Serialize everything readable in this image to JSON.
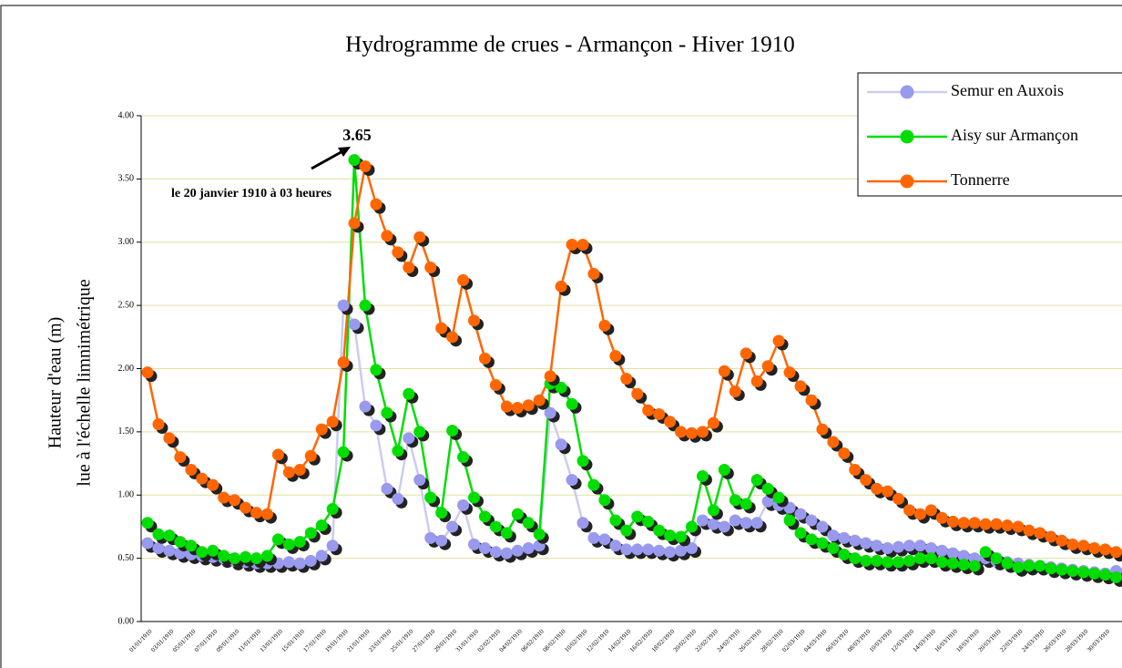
{
  "chart_data": {
    "type": "line",
    "title": "Hydrogramme de crues - Armançon - Hiver 1910",
    "y_label": [
      "Hauteur d'eau (m)",
      "lue à l'échelle limnimétrique"
    ],
    "annotations": [
      "3.65",
      "le 20 janvier 1910 à 03 heures"
    ],
    "categories": [
      "01/01/1910",
      null,
      "03/01/1910",
      null,
      "05/01/1910",
      null,
      "07/01/1910",
      null,
      "09/01/1910",
      null,
      "11/01/1910",
      null,
      "13/01/1910",
      null,
      "15/01/1910",
      null,
      "17/01/1910",
      null,
      "19/01/1910",
      null,
      "21/01/1910",
      null,
      "23/01/1910",
      null,
      "25/01/1910",
      null,
      "27/01/1910",
      null,
      "29/01/1910",
      null,
      "31/01/1910",
      null,
      "02/02/1910",
      null,
      "04/02/1910",
      null,
      "06/02/1910",
      null,
      "08/02/1910",
      null,
      "10/02/1910",
      null,
      "12/02/1910",
      null,
      "14/02/1910",
      null,
      "16/02/1910",
      null,
      "18/02/1910",
      null,
      "20/02/1910",
      null,
      "22/02/1910",
      null,
      "24/02/1910",
      null,
      "26/02/1910",
      null,
      "28/02/1910",
      null,
      "02/03/1910",
      null,
      "04/03/1910",
      null,
      "06/03/1910",
      null,
      "08/03/1910",
      null,
      "10/03/1910",
      null,
      "12/03/1910",
      null,
      "14/03/1910",
      null,
      "16/03/1910",
      null,
      "18/03/1910",
      null,
      "20/03/1910",
      null,
      "22/03/1910",
      null,
      "24/03/1910",
      null,
      "26/03/1910",
      null,
      "28/03/1910",
      null,
      "30/03/1910",
      null
    ],
    "series": [
      {
        "name": "Semur en Auxois",
        "color": "#9999ee",
        "line_color": "#ccccf0",
        "values": [
          0.62,
          0.58,
          0.56,
          0.54,
          0.53,
          0.52,
          0.51,
          0.5,
          0.48,
          0.47,
          0.46,
          0.46,
          0.46,
          0.47,
          0.46,
          0.48,
          0.52,
          0.6,
          2.5,
          2.35,
          1.7,
          1.55,
          1.05,
          0.97,
          1.45,
          1.12,
          0.66,
          0.64,
          0.75,
          0.92,
          0.61,
          0.58,
          0.55,
          0.54,
          0.56,
          0.58,
          0.6,
          1.65,
          1.4,
          1.12,
          0.78,
          0.66,
          0.65,
          0.6,
          0.57,
          0.57,
          0.57,
          0.56,
          0.55,
          0.56,
          0.58,
          0.8,
          0.77,
          0.75,
          0.8,
          0.78,
          0.78,
          0.95,
          0.92,
          0.9,
          0.85,
          0.8,
          0.75,
          0.68,
          0.66,
          0.64,
          0.62,
          0.6,
          0.58,
          0.59,
          0.6,
          0.6,
          0.58,
          0.56,
          0.54,
          0.52,
          0.5,
          0.5,
          0.48,
          0.47,
          0.46,
          0.45,
          0.44,
          0.43,
          0.42,
          0.41,
          0.4,
          0.39,
          0.38,
          0.4
        ]
      },
      {
        "name": "Aisy sur Armançon",
        "color": "#00dd00",
        "line_color": "#00dd00",
        "values": [
          0.78,
          0.69,
          0.68,
          0.63,
          0.6,
          0.55,
          0.56,
          0.52,
          0.5,
          0.51,
          0.5,
          0.52,
          0.65,
          0.61,
          0.63,
          0.7,
          0.76,
          0.89,
          1.34,
          3.65,
          2.5,
          1.99,
          1.65,
          1.35,
          1.8,
          1.5,
          0.98,
          0.86,
          1.51,
          1.3,
          0.98,
          0.83,
          0.75,
          0.7,
          0.85,
          0.78,
          0.69,
          1.88,
          1.85,
          1.72,
          1.27,
          1.08,
          0.96,
          0.8,
          0.72,
          0.83,
          0.79,
          0.72,
          0.68,
          0.67,
          0.75,
          1.15,
          0.88,
          1.2,
          0.96,
          0.93,
          1.12,
          1.05,
          0.98,
          0.8,
          0.7,
          0.65,
          0.62,
          0.58,
          0.53,
          0.5,
          0.48,
          0.48,
          0.47,
          0.47,
          0.48,
          0.5,
          0.5,
          0.47,
          0.46,
          0.45,
          0.44,
          0.55,
          0.5,
          0.46,
          0.43,
          0.44,
          0.44,
          0.42,
          0.41,
          0.4,
          0.39,
          0.38,
          0.37,
          0.35
        ]
      },
      {
        "name": "Tonnerre",
        "color": "#ff6600",
        "line_color": "#ff6600",
        "values": [
          1.97,
          1.56,
          1.45,
          1.3,
          1.2,
          1.13,
          1.08,
          0.98,
          0.96,
          0.9,
          0.86,
          0.85,
          1.32,
          1.18,
          1.2,
          1.31,
          1.52,
          1.58,
          2.05,
          3.15,
          3.6,
          3.3,
          3.05,
          2.92,
          2.8,
          3.04,
          2.8,
          2.32,
          2.25,
          2.7,
          2.38,
          2.08,
          1.87,
          1.7,
          1.69,
          1.71,
          1.75,
          1.94,
          2.65,
          2.98,
          2.98,
          2.75,
          2.34,
          2.1,
          1.92,
          1.8,
          1.67,
          1.64,
          1.58,
          1.5,
          1.49,
          1.5,
          1.57,
          1.98,
          1.82,
          2.12,
          1.9,
          2.02,
          2.22,
          1.97,
          1.86,
          1.75,
          1.52,
          1.42,
          1.33,
          1.2,
          1.12,
          1.05,
          1.03,
          0.97,
          0.88,
          0.85,
          0.88,
          0.82,
          0.79,
          0.78,
          0.78,
          0.77,
          0.77,
          0.76,
          0.75,
          0.72,
          0.7,
          0.67,
          0.64,
          0.61,
          0.6,
          0.58,
          0.57,
          0.55
        ]
      }
    ],
    "ylim": [
      0,
      4
    ],
    "yticks": [
      {
        "value": 0,
        "label": "0.00"
      },
      {
        "value": 0.5,
        "label": "0.50"
      },
      {
        "value": 1,
        "label": "1.00"
      },
      {
        "value": 1.5,
        "label": "1.50"
      },
      {
        "value": 2,
        "label": "2.00"
      },
      {
        "value": 2.5,
        "label": "2.50"
      },
      {
        "value": 3,
        "label": "3.00"
      },
      {
        "value": 3.5,
        "label": "3.50"
      },
      {
        "value": 4,
        "label": "4.00"
      }
    ],
    "grid": true,
    "legend": "top-right"
  }
}
